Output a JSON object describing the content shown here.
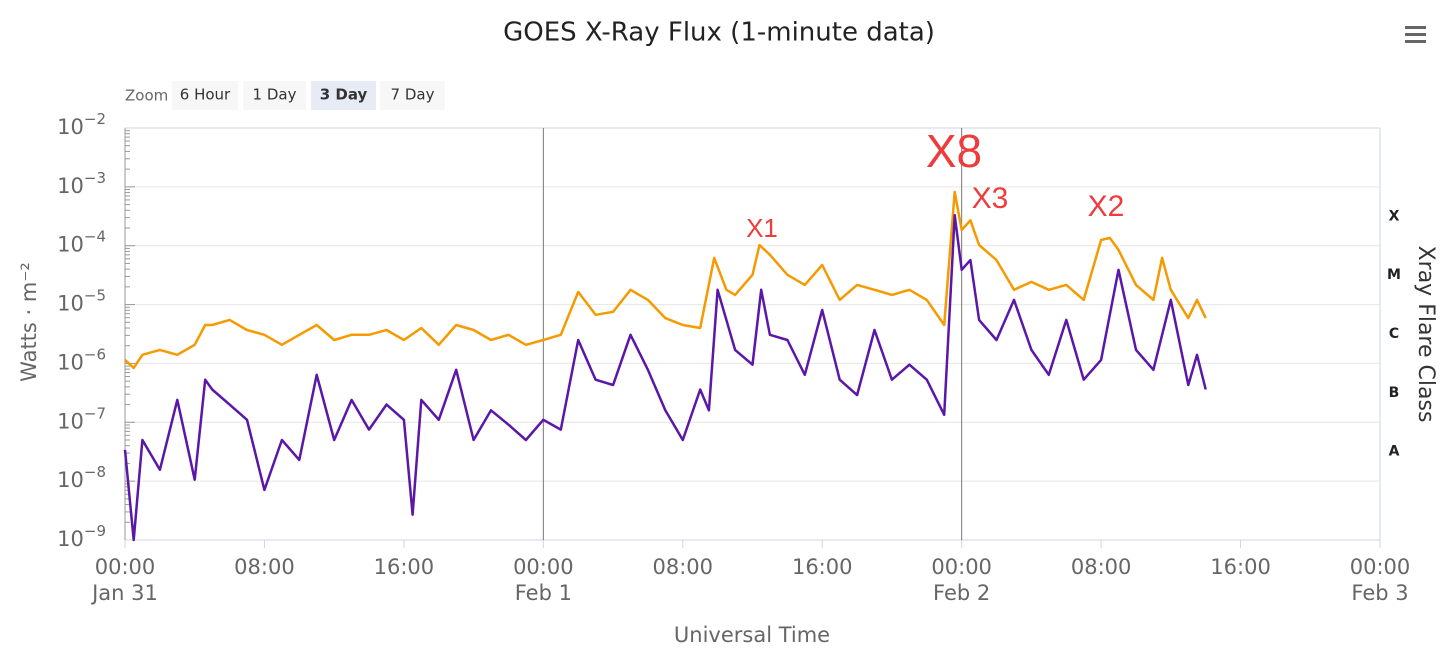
{
  "chart_data": {
    "type": "line",
    "title": "GOES X-Ray Flux (1-minute data)",
    "zoom": {
      "label": "Zoom",
      "options": [
        "6 Hour",
        "1 Day",
        "3 Day",
        "7 Day"
      ],
      "selected": 2
    },
    "xlabel": "Universal Time",
    "ylabel": "Watts · m⁻²",
    "y2label": "Xray Flare Class",
    "log_y": true,
    "grid": true,
    "xlim": [
      0,
      72
    ],
    "xticks": [
      {
        "value": 0,
        "label": "00:00\nJan 31"
      },
      {
        "value": 8,
        "label": "08:00"
      },
      {
        "value": 16,
        "label": "16:00"
      },
      {
        "value": 24,
        "label": "00:00\nFeb 1"
      },
      {
        "value": 32,
        "label": "08:00"
      },
      {
        "value": 40,
        "label": "16:00"
      },
      {
        "value": 48,
        "label": "00:00\nFeb 2"
      },
      {
        "value": 56,
        "label": "08:00"
      },
      {
        "value": 64,
        "label": "16:00"
      },
      {
        "value": 72,
        "label": "00:00\nFeb 3"
      }
    ],
    "ylim": [
      1e-09,
      0.01
    ],
    "yticks": [
      {
        "value": 1e-09,
        "label": "10",
        "power": "−9"
      },
      {
        "value": 1e-08,
        "label": "10",
        "power": "−8"
      },
      {
        "value": 1e-07,
        "label": "10",
        "power": "−7"
      },
      {
        "value": 1e-06,
        "label": "10",
        "power": "−6"
      },
      {
        "value": 1e-05,
        "label": "10",
        "power": "−5"
      },
      {
        "value": 0.0001,
        "label": "10",
        "power": "−4"
      },
      {
        "value": 0.001,
        "label": "10",
        "power": "−3"
      },
      {
        "value": 0.01,
        "label": "10",
        "power": "−2"
      }
    ],
    "y2_classes": [
      {
        "label": "X",
        "from": 0.0001,
        "to": 0.001
      },
      {
        "label": "M",
        "from": 1e-05,
        "to": 0.0001
      },
      {
        "label": "C",
        "from": 1e-06,
        "to": 1e-05
      },
      {
        "label": "B",
        "from": 1e-07,
        "to": 1e-06
      },
      {
        "label": "A",
        "from": 1e-08,
        "to": 1e-07
      }
    ],
    "series": [
      {
        "color": "#f59a00",
        "x": [
          0,
          0.5,
          1,
          2,
          3,
          4,
          4.6,
          5,
          6,
          7,
          8,
          9,
          10,
          11,
          12,
          13,
          14,
          15,
          16,
          17,
          18,
          19,
          20,
          21,
          22,
          23,
          24,
          25,
          26,
          27,
          28,
          29,
          30,
          31,
          32,
          33,
          33.8,
          34.5,
          35,
          36,
          36.4,
          37,
          38,
          39,
          40,
          41,
          42,
          43,
          44,
          45,
          46,
          47,
          47.6,
          48,
          48.5,
          49,
          50,
          51,
          52,
          53,
          54,
          55,
          56,
          56.5,
          57,
          58,
          59,
          59.5,
          60,
          61,
          61.5,
          62
        ],
        "values": [
          1.15e-06,
          8.4e-07,
          1.4e-06,
          1.7e-06,
          1.4e-06,
          2.07e-06,
          4.5e-06,
          4.5e-06,
          5.5e-06,
          3.7e-06,
          3.06e-06,
          2.07e-06,
          3.06e-06,
          4.5e-06,
          2.5e-06,
          3.06e-06,
          3.06e-06,
          3.7e-06,
          2.5e-06,
          4e-06,
          2.07e-06,
          4.5e-06,
          3.7e-06,
          2.5e-06,
          3.06e-06,
          2.07e-06,
          2.5e-06,
          3.06e-06,
          1.64e-05,
          6.7e-06,
          7.5e-06,
          1.78e-05,
          1.2e-05,
          5.9e-06,
          4.5e-06,
          4e-06,
          6.2e-05,
          1.78e-05,
          1.46e-05,
          3.2e-05,
          0.000103,
          7e-05,
          3.2e-05,
          2.16e-05,
          4.7e-05,
          1.2e-05,
          2.16e-05,
          1.78e-05,
          1.46e-05,
          1.78e-05,
          1.2e-05,
          4.5e-06,
          0.00082,
          0.000185,
          0.00027,
          0.000103,
          5.7e-05,
          1.78e-05,
          2.43e-05,
          1.78e-05,
          2.16e-05,
          1.2e-05,
          0.000125,
          0.000136,
          8.5e-05,
          2.16e-05,
          1.2e-05,
          6.2e-05,
          1.78e-05,
          5.9e-06,
          1.2e-05,
          5.9e-06
        ]
      },
      {
        "color": "#5a17a8",
        "x": [
          0,
          0.5,
          1,
          2,
          3,
          4,
          4.6,
          5,
          6,
          7,
          8,
          9,
          10,
          11,
          12,
          13,
          14,
          15,
          16,
          16.5,
          17,
          18,
          19,
          20,
          21,
          22,
          23,
          24,
          25,
          26,
          27,
          28,
          29,
          30,
          31,
          32,
          33,
          33.5,
          34,
          35,
          36,
          36.5,
          37,
          38,
          39,
          40,
          41,
          42,
          43,
          44,
          45,
          46,
          47,
          47.6,
          48,
          48.5,
          49,
          50,
          51,
          52,
          53,
          54,
          55,
          56,
          57,
          58,
          59,
          60,
          61,
          61.5,
          62
        ],
        "values": [
          3.4e-08,
          1e-09,
          5e-08,
          1.56e-08,
          2.4e-07,
          1.06e-08,
          5.3e-07,
          3.6e-07,
          2e-07,
          1.1e-07,
          7.1e-09,
          5e-08,
          2.3e-08,
          6.4e-07,
          5e-08,
          2.4e-07,
          7.5e-08,
          2e-07,
          1.1e-07,
          2.7e-09,
          2.4e-07,
          1.1e-07,
          7.8e-07,
          5e-08,
          1.6e-07,
          9.1e-08,
          5e-08,
          1.1e-07,
          7.5e-08,
          2.5e-06,
          5.3e-07,
          4.3e-07,
          3.06e-06,
          7.8e-07,
          1.6e-07,
          5e-08,
          3.6e-07,
          1.6e-07,
          1.78e-05,
          1.7e-06,
          9.5e-07,
          1.78e-05,
          3.06e-06,
          2.5e-06,
          6.4e-07,
          8.1e-06,
          5.3e-07,
          2.9e-07,
          3.7e-06,
          5.3e-07,
          9.5e-07,
          5.3e-07,
          1.34e-07,
          0.00033,
          3.9e-05,
          5.7e-05,
          5.5e-06,
          2.5e-06,
          1.2e-05,
          1.7e-06,
          6.4e-07,
          5.5e-06,
          5.3e-07,
          1.15e-06,
          3.9e-05,
          1.7e-06,
          7.8e-07,
          1.2e-05,
          4.3e-07,
          1.4e-06,
          3.6e-07
        ]
      }
    ],
    "annotations": [
      "X1",
      "X8",
      "X3",
      "X2"
    ]
  }
}
